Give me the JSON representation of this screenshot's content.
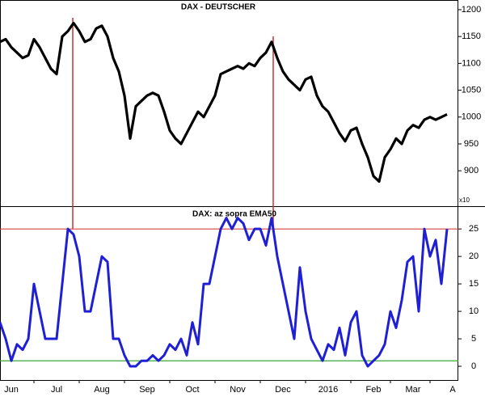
{
  "chart_data": [
    {
      "type": "line",
      "title": "DAX - DEUTSCHER",
      "axis_note": "x10",
      "series": [
        {
          "name": "DAX",
          "color": "#000000",
          "values": [
            1140,
            1145,
            1130,
            1120,
            1110,
            1115,
            1145,
            1130,
            1110,
            1090,
            1080,
            1150,
            1160,
            1175,
            1160,
            1140,
            1145,
            1165,
            1170,
            1150,
            1110,
            1085,
            1040,
            960,
            1020,
            1030,
            1040,
            1045,
            1040,
            1010,
            975,
            960,
            950,
            970,
            990,
            1010,
            1000,
            1020,
            1040,
            1080,
            1085,
            1090,
            1095,
            1090,
            1100,
            1095,
            1110,
            1120,
            1140,
            1110,
            1085,
            1070,
            1060,
            1050,
            1070,
            1075,
            1040,
            1020,
            1010,
            990,
            970,
            955,
            975,
            980,
            950,
            925,
            890,
            880,
            925,
            940,
            960,
            950,
            975,
            985,
            980,
            995,
            1000,
            995,
            1000,
            1005
          ]
        }
      ],
      "xlim": [
        0,
        81
      ],
      "ylim": [
        834,
        1218
      ],
      "yticks": [
        900,
        950,
        1000,
        1050,
        1100,
        1150,
        1200
      ]
    },
    {
      "type": "line",
      "title": "DAX: az sopra EMA50",
      "series": [
        {
          "name": "EMA50",
          "color": "#1f1fd6",
          "values": [
            8,
            5,
            1,
            4,
            3,
            5,
            15,
            10,
            5,
            5,
            5,
            15,
            25,
            24,
            20,
            10,
            10,
            15,
            20,
            19,
            5,
            5,
            2,
            0,
            0,
            1,
            1,
            2,
            1,
            2,
            4,
            3,
            5,
            2,
            8,
            4,
            15,
            15,
            20,
            25,
            27,
            25,
            27,
            26,
            23,
            25,
            25,
            22,
            27,
            20,
            15,
            10,
            5,
            18,
            10,
            5,
            3,
            1,
            4,
            3,
            7,
            2,
            8,
            10,
            2,
            0,
            1,
            2,
            4,
            10,
            7,
            12,
            19,
            20,
            10,
            25,
            20,
            23,
            15,
            25
          ]
        }
      ],
      "reference_lines": [
        {
          "value": 25,
          "color": "#d94040"
        },
        {
          "value": 1,
          "color": "#3aa63a"
        }
      ],
      "xlim": [
        0,
        81
      ],
      "ylim": [
        -2.5,
        29
      ],
      "yticks": [
        0,
        5,
        10,
        15,
        20,
        25
      ],
      "xticks": [
        {
          "value": 2,
          "label": "Jun"
        },
        {
          "value": 10,
          "label": "Jul"
        },
        {
          "value": 18,
          "label": "Aug"
        },
        {
          "value": 26,
          "label": "Sep"
        },
        {
          "value": 34,
          "label": "Oct"
        },
        {
          "value": 42,
          "label": "Nov"
        },
        {
          "value": 50,
          "label": "Dec"
        },
        {
          "value": 58,
          "label": "2016"
        },
        {
          "value": 66,
          "label": "Feb"
        },
        {
          "value": 73,
          "label": "Mar"
        },
        {
          "value": 80,
          "label": "A"
        }
      ]
    }
  ]
}
